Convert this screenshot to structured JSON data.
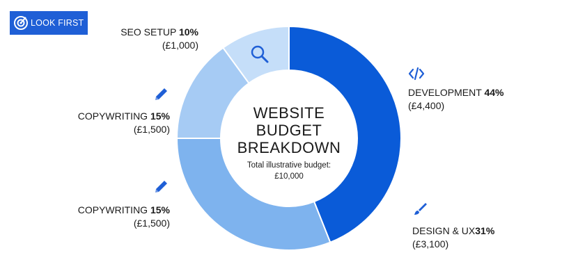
{
  "logo": {
    "text": "LOOK FIRST",
    "bg_color": "#1f5fd6"
  },
  "chart_data": {
    "type": "pie",
    "donut": true,
    "center_title_lines": [
      "WEBSITE",
      "BUDGET",
      "BREAKDOWN"
    ],
    "center_subtitle_lines": [
      "Total illustrative budget:",
      "£10,000"
    ],
    "slices": [
      {
        "label": "DEVELOPMENT",
        "percent_label": "44%",
        "amount_label": "(£4,400)",
        "value": 44,
        "color": "#0a5bd8",
        "icon": "code-icon"
      },
      {
        "label": "DESIGN & UX",
        "percent_label": "31%",
        "amount_label": "(£3,100)",
        "value": 31,
        "color": "#7eb3ee",
        "icon": "paintbrush-icon"
      },
      {
        "label": "COPYWRITING",
        "percent_label": "15%",
        "amount_label": "(£1,500)",
        "value": 15,
        "color": "#a6cbf4",
        "icon": "pencil-icon"
      },
      {
        "label": "SEO SETUP",
        "percent_label": "10%",
        "amount_label": "(£1,000)",
        "value": 10,
        "color": "#c5def9",
        "icon": "magnifier-icon"
      }
    ],
    "extra_label": {
      "label": "COPYWRITING",
      "percent_label": "15%",
      "amount_label": "(£1,500)",
      "icon": "pencil-icon"
    }
  }
}
